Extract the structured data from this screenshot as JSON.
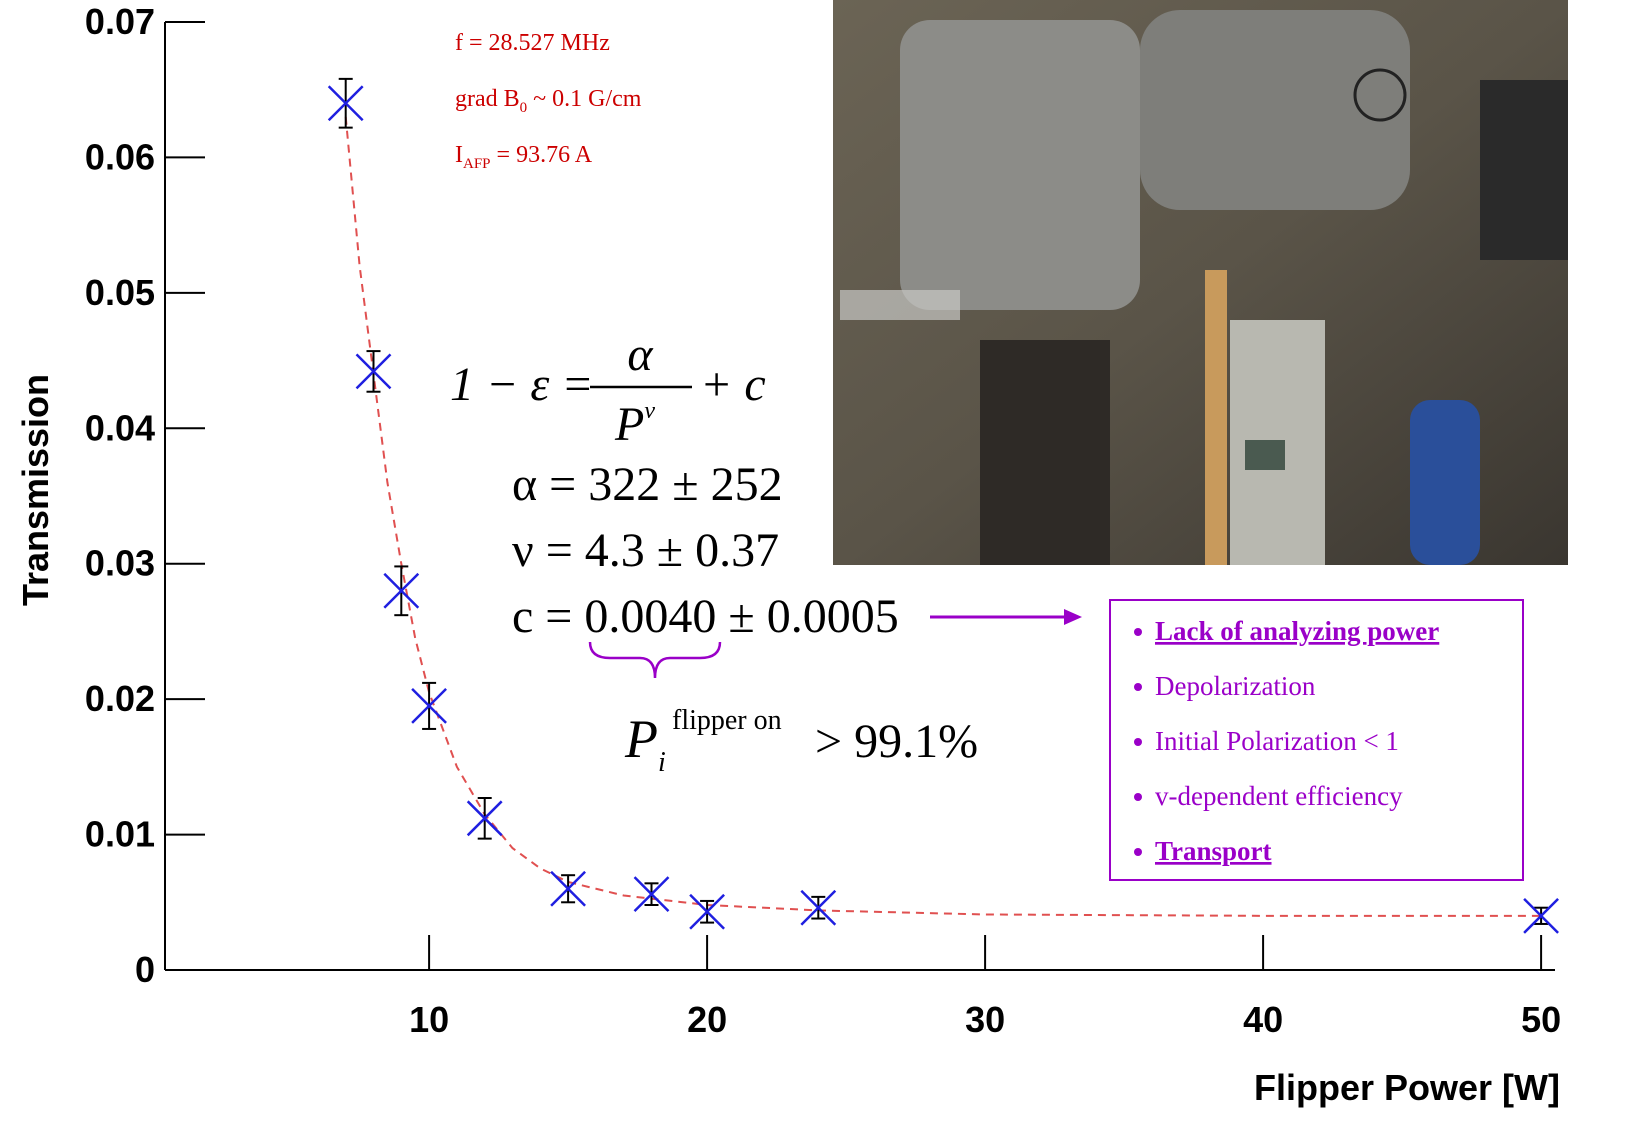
{
  "chart_data": {
    "type": "scatter",
    "x_label": "Flipper Power [W]",
    "y_label": "Transmission",
    "x": [
      7,
      8,
      9,
      10,
      12,
      15,
      18,
      20,
      24,
      50
    ],
    "values": [
      0.064,
      0.0442,
      0.028,
      0.0195,
      0.0112,
      0.006,
      0.0056,
      0.0043,
      0.0046,
      0.004
    ],
    "errors": [
      0.0018,
      0.0015,
      0.0018,
      0.0017,
      0.0015,
      0.001,
      0.0008,
      0.0008,
      0.0008,
      0.0006
    ],
    "color": "#1f1fe0",
    "error_color": "#000000",
    "fit": {
      "x": [
        7,
        7.5,
        8,
        8.5,
        9,
        9.5,
        10,
        11,
        12,
        13,
        14,
        15,
        17,
        20,
        24,
        30,
        40,
        50
      ],
      "values": [
        0.063,
        0.052,
        0.044,
        0.036,
        0.03,
        0.0245,
        0.0205,
        0.015,
        0.0115,
        0.009,
        0.0075,
        0.0065,
        0.0055,
        0.0048,
        0.0044,
        0.0041,
        0.004,
        0.004
      ],
      "color": "#e05050"
    },
    "xlim": [
      0.5,
      50.5
    ],
    "xticks": [
      10,
      20,
      30,
      40,
      50
    ],
    "ylim": [
      0,
      0.07
    ],
    "yticks": [
      0,
      0.01,
      0.02,
      0.03,
      0.04,
      0.05,
      0.06,
      0.07
    ],
    "annotations": [
      [
        "f = 28.527 MHz"
      ],
      [
        "grad B",
        "0",
        " ~ 0.1 G/cm"
      ],
      [
        "I",
        "AFP",
        " = 93.76 A"
      ]
    ],
    "formula": {
      "lhs": "1 − ε =",
      "num": "α",
      "den": "P",
      "den_sup": "ν",
      "rhs": "+ c"
    },
    "parameters": [
      "α = 322 ± 252",
      "ν = 4.3 ± 0.37",
      "c = 0.0040 ± 0.0005"
    ],
    "polarization": {
      "symbol": "P",
      "sub": "i",
      "sup": "flipper on",
      "rest": "> 99.1%"
    },
    "causes": [
      {
        "text": "Lack of analyzing power",
        "emphasis": true
      },
      {
        "text": "Depolarization",
        "emphasis": false
      },
      {
        "text": "Initial Polarization < 1",
        "emphasis": false
      },
      {
        "text": "v-dependent efficiency",
        "emphasis": false
      },
      {
        "text": "Transport",
        "emphasis": true
      }
    ]
  }
}
